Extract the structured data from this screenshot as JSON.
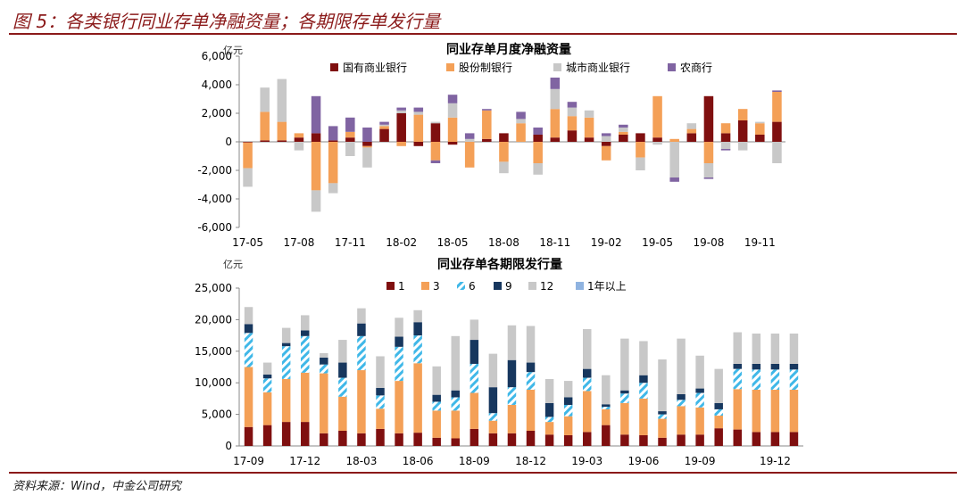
{
  "figure": {
    "title": "图 5：各类银行同业存单净融资量；各期限存单发行量",
    "source": "资料来源：Wind，中金公司研究"
  },
  "colors": {
    "dark_red": "#7f0f0f",
    "orange": "#f4a057",
    "light_gray": "#c8c8c8",
    "purple": "#8064a2",
    "navy": "#17375e",
    "cyan_stripe": "#40b8e8",
    "light_blue": "#8fb3e0",
    "brand_rule": "#8b1a1a"
  },
  "chart_data": [
    {
      "type": "bar",
      "stacked": true,
      "title": "同业存单月度净融资量",
      "unit_label": "亿元",
      "ylim": [
        -6000,
        6000
      ],
      "yticks": [
        -6000,
        -4000,
        -2000,
        0,
        2000,
        4000,
        6000
      ],
      "ytick_labels": [
        "-6,000",
        "-4,000",
        "-2,000",
        "0",
        "2,000",
        "4,000",
        "6,000"
      ],
      "xtick_labels": [
        "17-05",
        "17-08",
        "17-11",
        "18-02",
        "18-05",
        "18-08",
        "18-11",
        "19-02",
        "19-05",
        "19-08",
        "19-11"
      ],
      "categories": [
        "17-05",
        "17-06",
        "17-07",
        "17-08",
        "17-09",
        "17-10",
        "17-11",
        "17-12",
        "18-01",
        "18-02",
        "18-03",
        "18-04",
        "18-05",
        "18-06",
        "18-07",
        "18-08",
        "18-09",
        "18-10",
        "18-11",
        "18-12",
        "19-01",
        "19-02",
        "19-03",
        "19-04",
        "19-05",
        "19-06",
        "19-07",
        "19-08",
        "19-09",
        "19-10",
        "19-11",
        "19-12"
      ],
      "legend_position": "top",
      "grid": false,
      "series": [
        {
          "name": "国有商业银行",
          "color": "#7f0f0f",
          "values": [
            -50,
            100,
            100,
            300,
            600,
            100,
            300,
            -300,
            900,
            2000,
            -300,
            1300,
            -200,
            0,
            200,
            600,
            0,
            500,
            300,
            800,
            300,
            -300,
            500,
            600,
            300,
            0,
            600,
            3200,
            600,
            1500,
            500,
            1400
          ]
        },
        {
          "name": "股份制银行",
          "color": "#f4a057",
          "values": [
            -1800,
            2000,
            1300,
            300,
            -3400,
            -2900,
            400,
            -100,
            200,
            -300,
            1900,
            -1300,
            1700,
            -1800,
            2000,
            -1400,
            1300,
            -1500,
            2000,
            1000,
            1400,
            -1000,
            200,
            -1100,
            2900,
            200,
            300,
            -1500,
            700,
            800,
            800,
            2100
          ]
        },
        {
          "name": "城市商业银行",
          "color": "#c8c8c8",
          "values": [
            -1300,
            1700,
            3000,
            -600,
            -1500,
            -700,
            -1000,
            -1400,
            100,
            200,
            200,
            100,
            1000,
            200,
            0,
            -800,
            300,
            -800,
            1400,
            600,
            500,
            400,
            300,
            -900,
            -200,
            -2500,
            400,
            -1000,
            -500,
            -600,
            100,
            -1500
          ]
        },
        {
          "name": "农商行",
          "color": "#8064a2",
          "values": [
            0,
            0,
            0,
            0,
            2600,
            1000,
            1000,
            1000,
            200,
            200,
            300,
            -200,
            600,
            400,
            100,
            0,
            500,
            500,
            800,
            400,
            0,
            200,
            200,
            0,
            0,
            -300,
            0,
            -100,
            -100,
            0,
            0,
            100
          ]
        }
      ]
    },
    {
      "type": "bar",
      "stacked": true,
      "title": "同业存单各期限发行量",
      "unit_label": "亿元",
      "ylim": [
        0,
        25000
      ],
      "yticks": [
        0,
        5000,
        10000,
        15000,
        20000,
        25000
      ],
      "ytick_labels": [
        "0",
        "5,000",
        "10,000",
        "15,000",
        "20,000",
        "25,000"
      ],
      "xtick_labels": [
        "17-09",
        "17-12",
        "18-03",
        "18-06",
        "18-09",
        "18-12",
        "19-03",
        "19-06",
        "19-09",
        "19-12"
      ],
      "categories": [
        "17-09a",
        "17-09b",
        "17-12a",
        "17-12b",
        "17-12c",
        "18-03a",
        "18-03b",
        "18-03c",
        "18-06a",
        "18-06b",
        "18-06c",
        "18-09a",
        "18-09b",
        "18-09c",
        "18-12a",
        "18-12b",
        "18-12c",
        "19-03a",
        "19-03b",
        "19-03c",
        "19-06a",
        "19-06b",
        "19-06c",
        "19-09a",
        "19-09b",
        "19-09c",
        "19-12a",
        "19-12b",
        "19-12c",
        "19-12d"
      ],
      "legend_position": "top",
      "grid": false,
      "series": [
        {
          "name": "1",
          "color": "#7f0f0f",
          "values": [
            3000,
            3300,
            3800,
            3800,
            2000,
            2400,
            2000,
            2700,
            2000,
            2100,
            1300,
            1200,
            2700,
            2000,
            2000,
            2400,
            1800,
            1700,
            2200,
            3300,
            1800,
            1700,
            1300,
            1800,
            1800,
            2800,
            2600,
            2200,
            2200,
            2200
          ]
        },
        {
          "name": "3",
          "color": "#f4a057",
          "values": [
            9500,
            5200,
            6800,
            7800,
            9500,
            5400,
            10000,
            3200,
            8300,
            11000,
            4300,
            4400,
            5700,
            2000,
            4500,
            6500,
            2000,
            3000,
            6500,
            2500,
            5000,
            5800,
            3000,
            4500,
            4300,
            2000,
            6400,
            6700,
            6700,
            6700
          ]
        },
        {
          "name": "6",
          "color": "#40b8e8",
          "values": [
            5400,
            2200,
            5200,
            5800,
            1400,
            3000,
            5400,
            2100,
            5400,
            4400,
            1400,
            2100,
            4600,
            1200,
            2800,
            2800,
            800,
            1800,
            2100,
            400,
            1500,
            2500,
            700,
            1000,
            2300,
            1000,
            3200,
            3200,
            3200,
            3200
          ]
        },
        {
          "name": "9",
          "color": "#17375e",
          "values": [
            1400,
            600,
            500,
            900,
            1100,
            2400,
            2000,
            1200,
            1600,
            2100,
            1100,
            1100,
            3800,
            4100,
            4300,
            1500,
            2200,
            1200,
            1400,
            400,
            500,
            1200,
            500,
            900,
            700,
            1000,
            800,
            900,
            900,
            900
          ]
        },
        {
          "name": "12",
          "color": "#c8c8c8",
          "values": [
            2700,
            1900,
            2400,
            2400,
            700,
            3600,
            2400,
            5000,
            3000,
            1900,
            4500,
            8600,
            3200,
            5300,
            5500,
            5800,
            3800,
            2600,
            6300,
            4600,
            8200,
            5400,
            8200,
            8800,
            5200,
            5400,
            5000,
            4800,
            4800,
            4800
          ]
        },
        {
          "name": "1年以上",
          "color": "#8fb3e0",
          "values": [
            0,
            0,
            0,
            0,
            0,
            0,
            0,
            0,
            0,
            0,
            0,
            0,
            0,
            0,
            0,
            0,
            0,
            0,
            0,
            0,
            0,
            0,
            0,
            0,
            0,
            0,
            0,
            0,
            0,
            0
          ]
        }
      ]
    }
  ]
}
